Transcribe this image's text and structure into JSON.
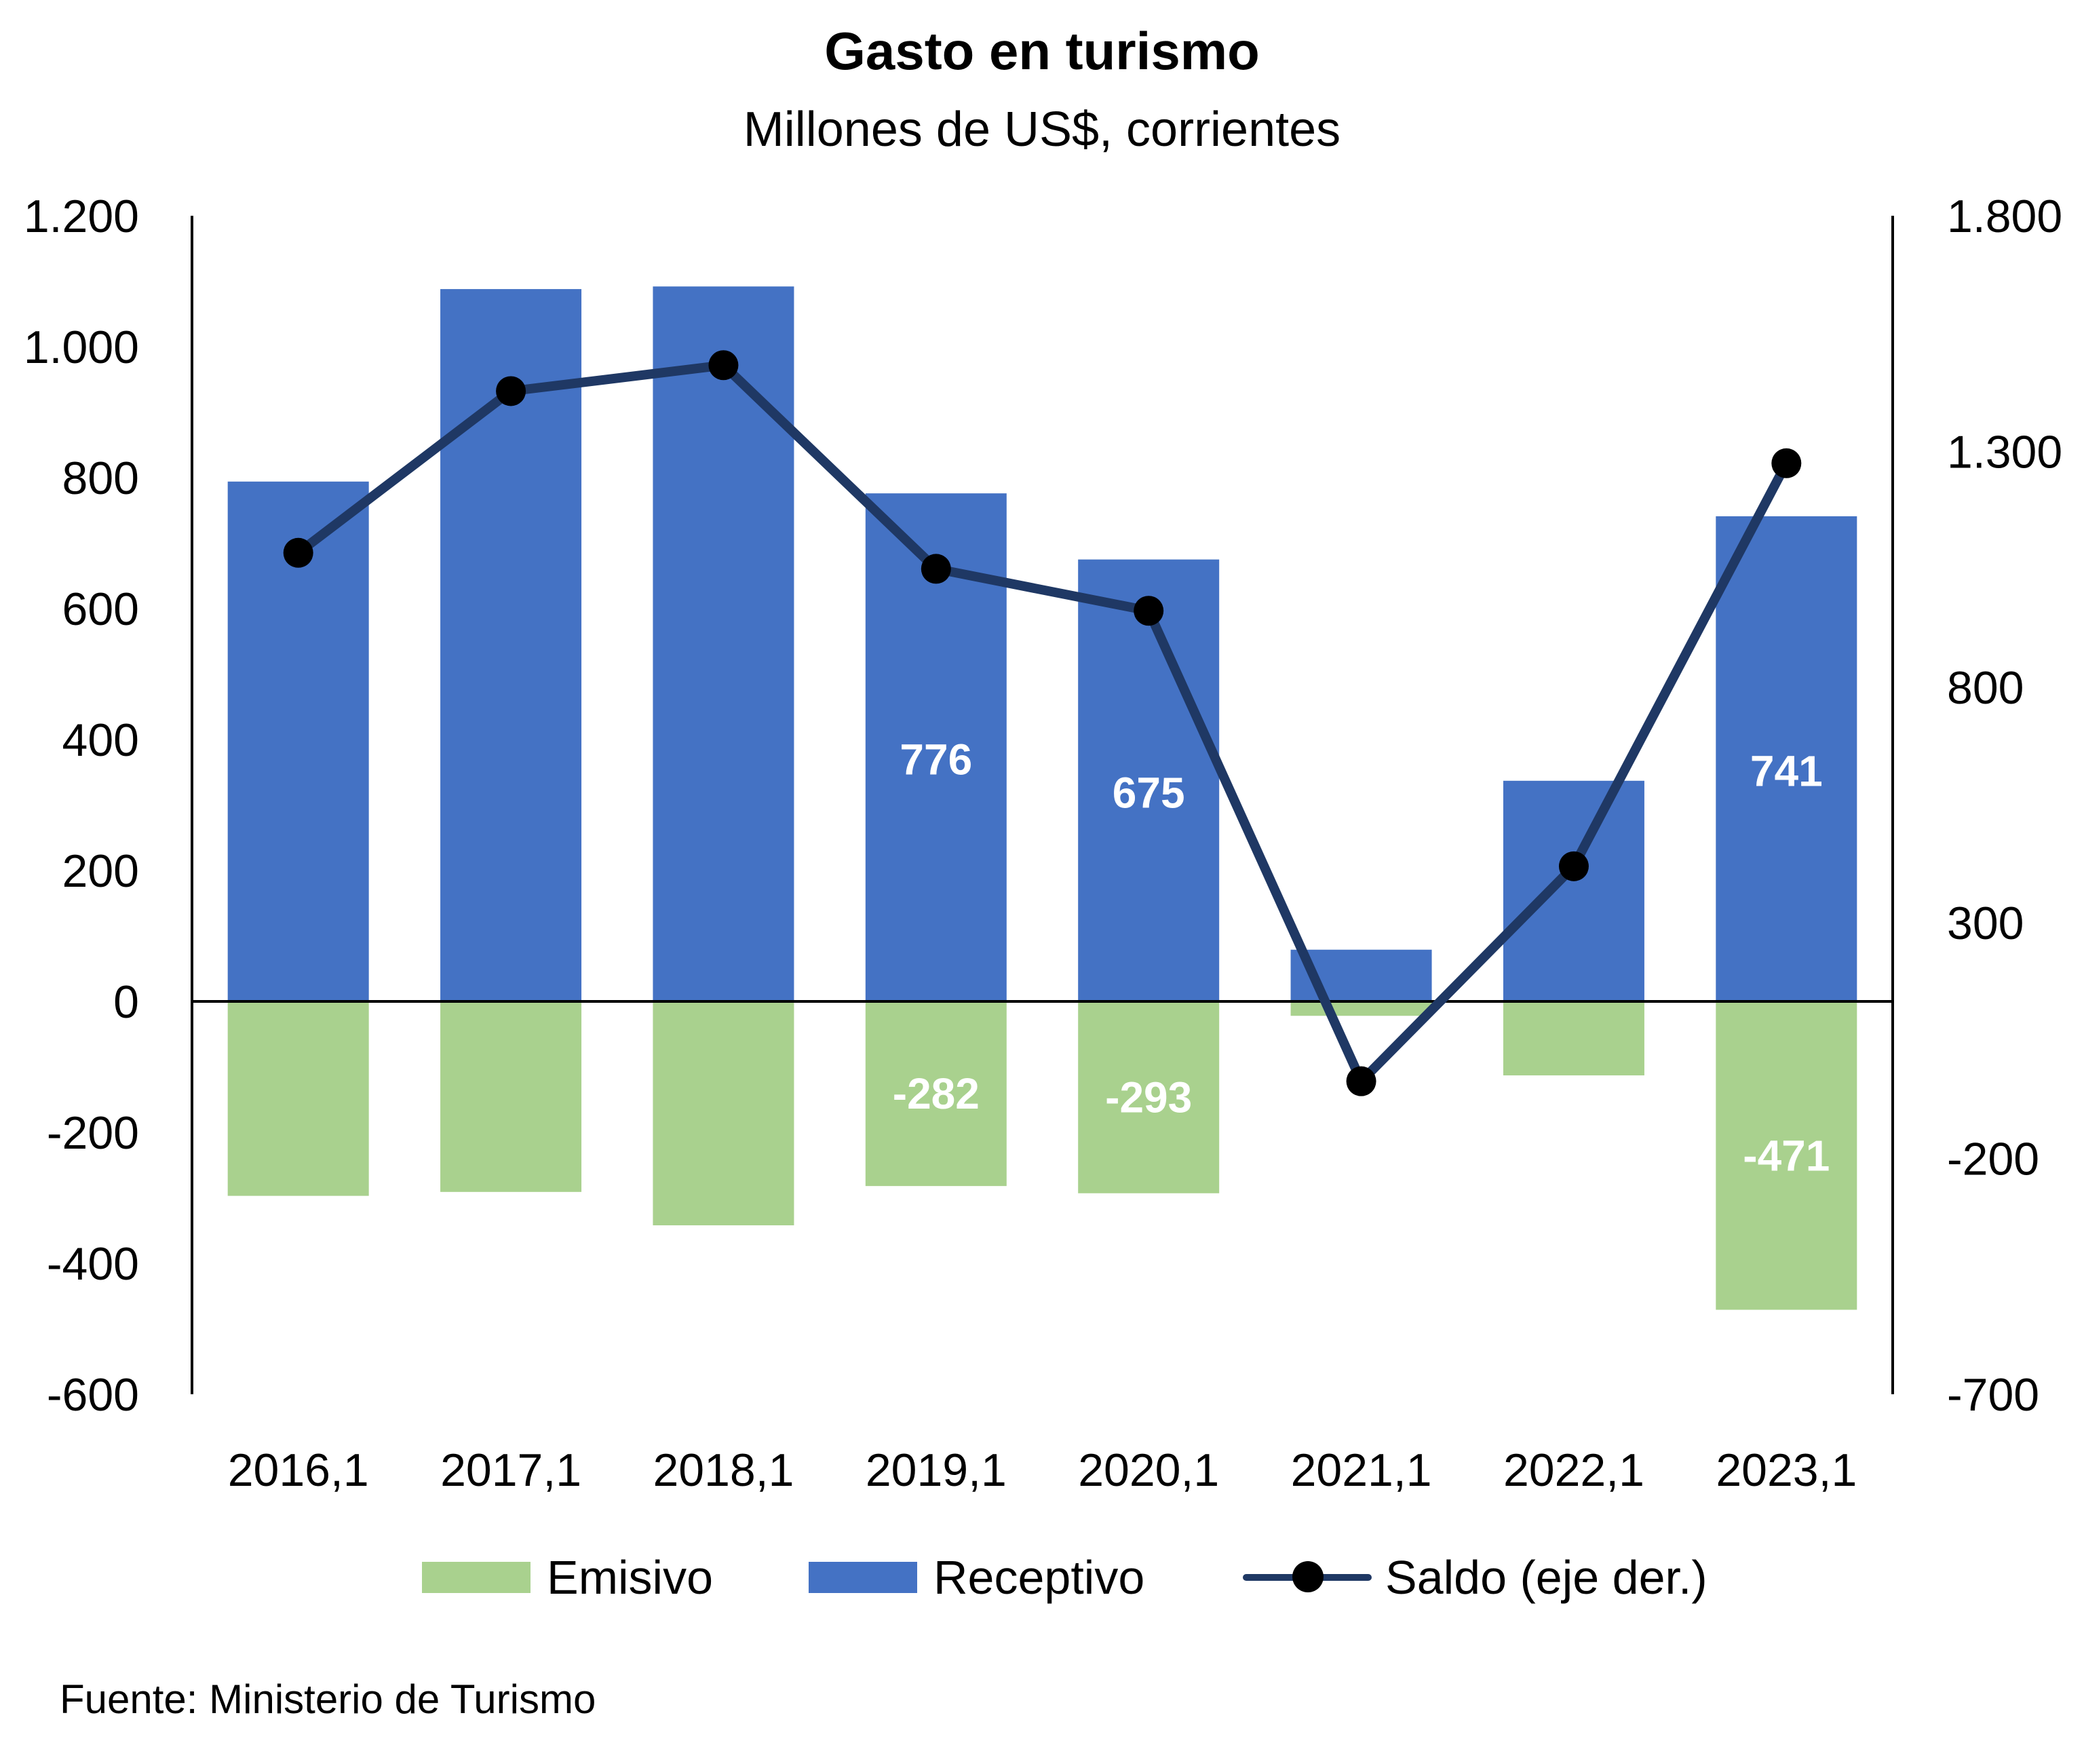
{
  "chart_data": {
    "type": "bar+line",
    "title": "Gasto en turismo",
    "subtitle": "Millones de US$, corrientes",
    "categories": [
      "2016,1",
      "2017,1",
      "2018,1",
      "2019,1",
      "2020,1",
      "2021,1",
      "2022,1",
      "2023,1"
    ],
    "series": [
      {
        "name": "Emisivo",
        "type": "bar",
        "axis": "left",
        "color": "#a9d18e",
        "values": [
          -297,
          -291,
          -342,
          -282,
          -293,
          -22,
          -113,
          -471
        ]
      },
      {
        "name": "Receptivo",
        "type": "bar",
        "axis": "left",
        "color": "#4472c4",
        "values": [
          794,
          1088,
          1092,
          776,
          675,
          79,
          337,
          741
        ]
      },
      {
        "name": "Saldo (eje der.)",
        "type": "line",
        "axis": "right",
        "color": "#1f3864",
        "marker_color": "#000000",
        "values": [
          1085,
          1428,
          1483,
          1051,
          962,
          -36,
          420,
          1275
        ]
      }
    ],
    "data_labels": [
      {
        "series": "Receptivo",
        "category": "2019,1",
        "text": "776"
      },
      {
        "series": "Receptivo",
        "category": "2020,1",
        "text": "675"
      },
      {
        "series": "Receptivo",
        "category": "2023,1",
        "text": "741"
      },
      {
        "series": "Emisivo",
        "category": "2019,1",
        "text": "-282"
      },
      {
        "series": "Emisivo",
        "category": "2020,1",
        "text": "-293"
      },
      {
        "series": "Emisivo",
        "category": "2023,1",
        "text": "-471"
      }
    ],
    "y_left": {
      "ylim": [
        -600,
        1200
      ],
      "ticks": [
        -600,
        -400,
        -200,
        0,
        200,
        400,
        600,
        800,
        1000,
        1200
      ],
      "tick_labels": [
        "-600",
        "-400",
        "-200",
        "0",
        "200",
        "400",
        "600",
        "800",
        "1.000",
        "1.200"
      ]
    },
    "y_right": {
      "ylim": [
        -700,
        1800
      ],
      "ticks": [
        -700,
        -200,
        300,
        800,
        1300,
        1800
      ],
      "tick_labels": [
        "-700",
        "-200",
        "300",
        "800",
        "1.300",
        "1.800"
      ]
    },
    "grid": false,
    "legend_position": "bottom",
    "source": "Fuente: Ministerio de Turismo"
  }
}
